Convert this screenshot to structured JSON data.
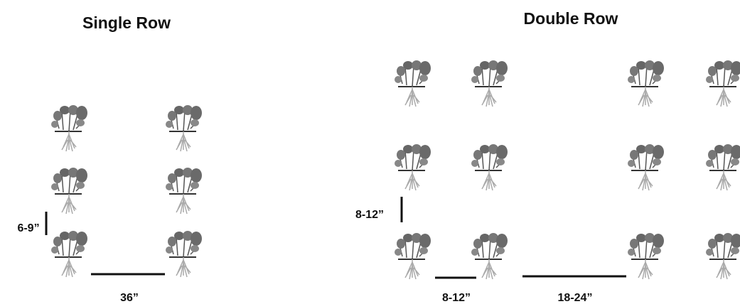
{
  "single_row": {
    "title": "Single Row",
    "plant_spacing": "6-9”",
    "row_spacing": "36”"
  },
  "double_row": {
    "title": "Double Row",
    "plant_spacing": "8-12”",
    "row_spacing": "8-12”",
    "bed_spacing": "18-24”"
  }
}
